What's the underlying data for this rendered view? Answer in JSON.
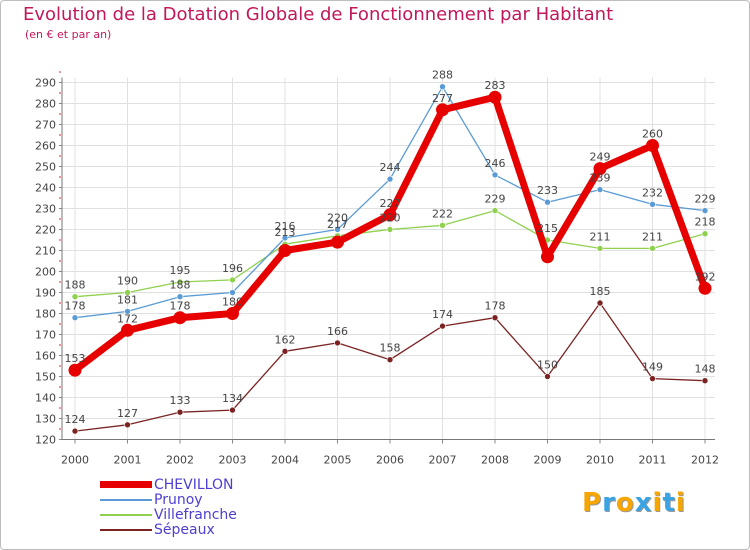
{
  "colors": {
    "title": "#c2185b",
    "axis": "#555555",
    "legend_text": "#4c3fd1",
    "grid_major": "#e0e0e0",
    "tick_accent": "#d32f2f",
    "chevillon": "#e60000",
    "prunoy": "#5b9bd5",
    "villefranche": "#8fd14f",
    "sepeaux": "#7b2323"
  },
  "logo": {
    "letters": [
      "P",
      "r",
      "o",
      "x",
      "i",
      "t",
      "i"
    ],
    "colors": [
      "#f7a600",
      "#3aa3e3",
      "#f7a600",
      "#3aa3e3",
      "#f7a600",
      "#3aa3e3",
      "#f7a600"
    ]
  },
  "chart_data": {
    "type": "line",
    "title": "Evolution de la Dotation Globale de Fonctionnement par Habitant",
    "subtitle": "(en € et par an)",
    "xlabel": "",
    "ylabel": "",
    "ylim": [
      120,
      290
    ],
    "ytick_step": 10,
    "ytick_labels": [
      "120",
      "130",
      "140",
      "150",
      "160",
      "170",
      "180",
      "190",
      "200",
      "210",
      "220",
      "230",
      "240",
      "250",
      "260",
      "270",
      "280",
      "290"
    ],
    "categories": [
      "2000",
      "2001",
      "2002",
      "2003",
      "2004",
      "2005",
      "2006",
      "2007",
      "2008",
      "2009",
      "2010",
      "2011",
      "2012"
    ],
    "grid": true,
    "legend_position": "bottom-left",
    "series": [
      {
        "name": "CHEVILLON",
        "key": "chevillon",
        "values": [
          153,
          172,
          178,
          180,
          210,
          214,
          227,
          277,
          283,
          207,
          249,
          260,
          192
        ],
        "labels": [
          "153",
          "172",
          "178",
          "180",
          "",
          "",
          "227",
          "277",
          "283",
          "",
          "249",
          "260",
          "192"
        ]
      },
      {
        "name": "Prunoy",
        "key": "prunoy",
        "values": [
          178,
          181,
          188,
          190,
          216,
          220,
          244,
          288,
          246,
          233,
          239,
          232,
          229
        ],
        "labels": [
          "178",
          "181",
          "188",
          "",
          "216",
          "220",
          "244",
          "288",
          "246",
          "233",
          "239",
          "232",
          "229"
        ]
      },
      {
        "name": "Villefranche",
        "key": "villefranche",
        "values": [
          188,
          190,
          195,
          196,
          213,
          217,
          220,
          222,
          229,
          215,
          211,
          211,
          218
        ],
        "labels": [
          "188",
          "190",
          "195",
          "196",
          "213",
          "217",
          "220",
          "222",
          "229",
          "215",
          "211",
          "211",
          "218"
        ]
      },
      {
        "name": "Sépeaux",
        "key": "sepeaux",
        "values": [
          124,
          127,
          133,
          134,
          162,
          166,
          158,
          174,
          178,
          150,
          185,
          149,
          148
        ],
        "labels": [
          "124",
          "127",
          "133",
          "134",
          "162",
          "166",
          "158",
          "174",
          "178",
          "150",
          "185",
          "149",
          "148"
        ]
      }
    ]
  }
}
